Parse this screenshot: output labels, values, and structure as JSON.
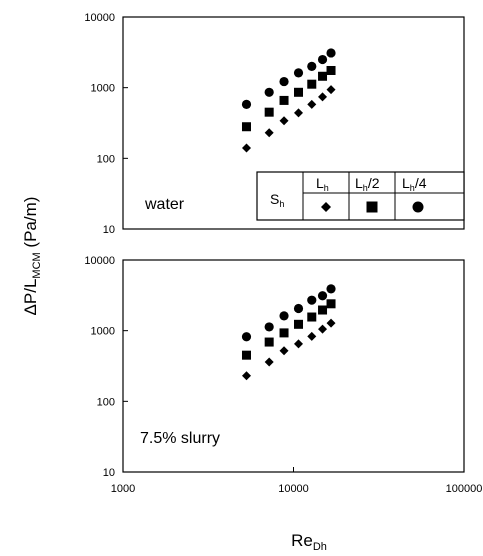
{
  "y_label": {
    "main": "ΔP/L",
    "subscript": "MCM",
    "unit": " (Pa/m)"
  },
  "x_label": {
    "main": "Re",
    "subscript": "Dh"
  },
  "legend": {
    "row_label": {
      "main": "S",
      "subscript": "h"
    },
    "columns": [
      {
        "main": "L",
        "subscript": "h",
        "suffix": "",
        "marker": "diamond"
      },
      {
        "main": "L",
        "subscript": "h",
        "suffix": "/2",
        "marker": "square"
      },
      {
        "main": "L",
        "subscript": "h",
        "suffix": "/4",
        "marker": "circle"
      }
    ]
  },
  "chart_data": [
    {
      "type": "scatter",
      "annotation": "water",
      "x_scale": "log",
      "y_scale": "log",
      "xlim": [
        1000,
        100000
      ],
      "ylim": [
        10,
        10000
      ],
      "y_ticks": [
        "10",
        "100",
        "1000",
        "10000"
      ],
      "x_tick_labels_shown": false,
      "grid": false,
      "series": [
        {
          "marker": "diamond",
          "x": [
            5300,
            7200,
            8800,
            10700,
            12800,
            14800,
            16600
          ],
          "y": [
            140,
            230,
            340,
            440,
            580,
            740,
            940
          ]
        },
        {
          "marker": "square",
          "x": [
            5300,
            7200,
            8800,
            10700,
            12800,
            14800,
            16600
          ],
          "y": [
            280,
            450,
            660,
            860,
            1120,
            1450,
            1750
          ]
        },
        {
          "marker": "circle",
          "x": [
            5300,
            7200,
            8800,
            10700,
            12800,
            14800,
            16600
          ],
          "y": [
            580,
            860,
            1220,
            1620,
            2000,
            2500,
            3100
          ]
        }
      ]
    },
    {
      "type": "scatter",
      "annotation": "7.5% slurry",
      "x_scale": "log",
      "y_scale": "log",
      "xlim": [
        1000,
        100000
      ],
      "ylim": [
        10,
        10000
      ],
      "y_ticks": [
        "10",
        "100",
        "1000",
        "10000"
      ],
      "x_ticks": [
        "1000",
        "10000",
        "100000"
      ],
      "grid": false,
      "series": [
        {
          "marker": "diamond",
          "x": [
            5300,
            7200,
            8800,
            10700,
            12800,
            14800,
            16600
          ],
          "y": [
            230,
            360,
            520,
            650,
            830,
            1050,
            1280
          ]
        },
        {
          "marker": "square",
          "x": [
            5300,
            7200,
            8800,
            10700,
            12800,
            14800,
            16600
          ],
          "y": [
            450,
            690,
            930,
            1230,
            1560,
            1960,
            2400
          ]
        },
        {
          "marker": "circle",
          "x": [
            5300,
            7200,
            8800,
            10700,
            12800,
            14800,
            16600
          ],
          "y": [
            820,
            1130,
            1620,
            2060,
            2700,
            3120,
            3900
          ]
        }
      ]
    }
  ]
}
